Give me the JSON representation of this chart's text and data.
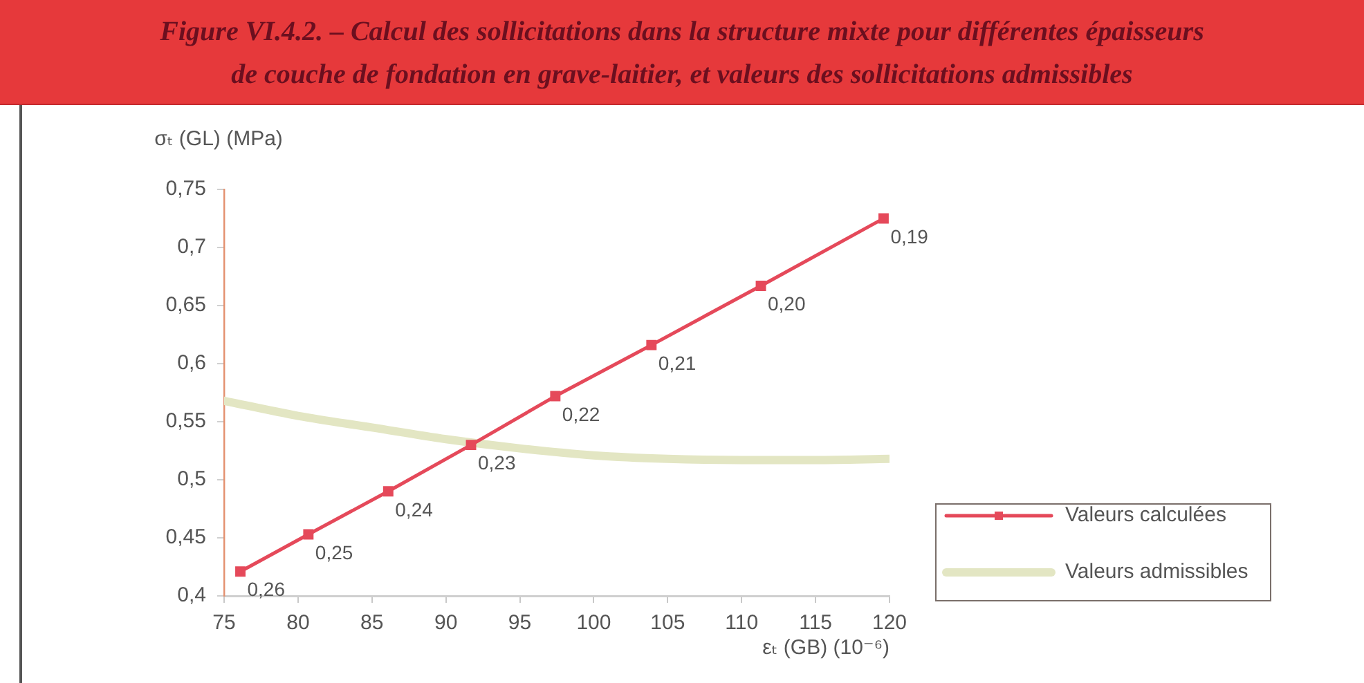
{
  "chart_data": {
    "type": "line",
    "title": "Figure VI.4.2. – Calcul des sollicitations dans la structure mixte pour différentes épaisseurs de couche de fondation en grave-laitier, et valeurs des sollicitations admissibles",
    "xlabel": "εₜ (GB) (10⁻⁶)",
    "ylabel": "σₜ (GL) (MPa)",
    "series": [
      {
        "name": "Valeurs calculées",
        "color": "#e5495a",
        "marker": "square",
        "x": [
          76.1,
          80.7,
          86.1,
          91.7,
          97.4,
          103.9,
          111.3,
          119.6
        ],
        "values": [
          0.421,
          0.453,
          0.49,
          0.53,
          0.572,
          0.616,
          0.667,
          0.725
        ]
      },
      {
        "name": "Valeurs admissibles",
        "color": "#e3e6c3",
        "marker": "none",
        "x": [
          75,
          80,
          85,
          90,
          95,
          100,
          105,
          110,
          115,
          120
        ],
        "values": [
          0.568,
          0.555,
          0.545,
          0.535,
          0.527,
          0.521,
          0.518,
          0.517,
          0.517,
          0.518
        ]
      }
    ],
    "xlim": [
      75,
      120
    ],
    "ylim": [
      0.4,
      0.75
    ],
    "xticks": [
      75,
      80,
      85,
      90,
      95,
      100,
      105,
      110,
      115,
      120
    ],
    "yticks": [
      {
        "value": 0.4,
        "label": "0,4"
      },
      {
        "value": 0.45,
        "label": "0,45"
      },
      {
        "value": 0.5,
        "label": "0,5"
      },
      {
        "value": 0.55,
        "label": "0,55"
      },
      {
        "value": 0.6,
        "label": "0,6"
      },
      {
        "value": 0.65,
        "label": "0,65"
      },
      {
        "value": 0.7,
        "label": "0,7"
      },
      {
        "value": 0.75,
        "label": "0,75"
      }
    ],
    "legend": "right",
    "annotations": [
      {
        "text": "0,26",
        "x": 76.1,
        "y": 0.421
      },
      {
        "text": "0,25",
        "x": 80.7,
        "y": 0.453
      },
      {
        "text": "0,24",
        "x": 86.1,
        "y": 0.49
      },
      {
        "text": "0,23",
        "x": 91.7,
        "y": 0.53
      },
      {
        "text": "0,22",
        "x": 97.4,
        "y": 0.572
      },
      {
        "text": "0,21",
        "x": 103.9,
        "y": 0.616
      },
      {
        "text": "0,20",
        "x": 111.3,
        "y": 0.667
      },
      {
        "text": "0,19",
        "x": 119.6,
        "y": 0.725
      }
    ]
  }
}
